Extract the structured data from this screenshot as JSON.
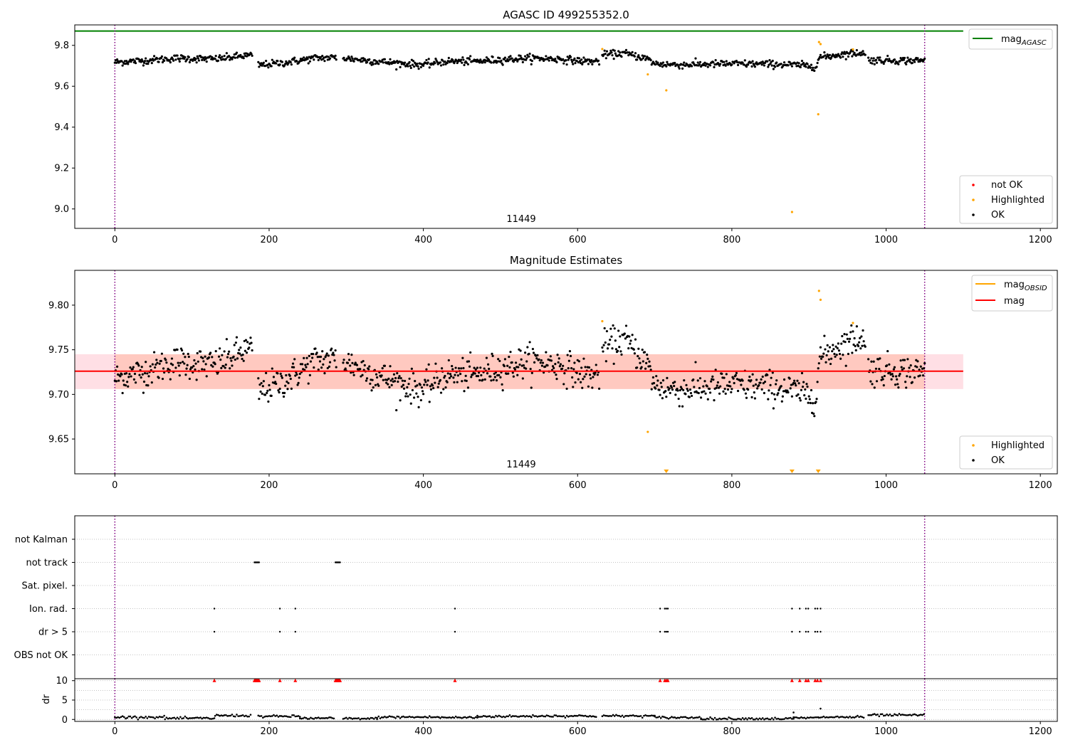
{
  "chart_data": [
    {
      "type": "scatter",
      "title": "AGASC ID 499255352.0",
      "xlim": [
        -52,
        1222
      ],
      "ylim": [
        8.905,
        9.9
      ],
      "x_ticks": [
        0,
        200,
        400,
        600,
        800,
        1000,
        1200
      ],
      "y_ticks": [
        9.0,
        9.2,
        9.4,
        9.6,
        9.8
      ],
      "y_tick_labels": [
        "9.0",
        "9.2",
        "9.4",
        "9.6",
        "9.8"
      ],
      "grid": false,
      "vlines": [
        0,
        1050
      ],
      "annotation": {
        "text": "11449",
        "x": 525
      },
      "mag_agasc": 9.87,
      "legend_lines": [
        {
          "label": "mag",
          "sub": "AGASC",
          "color": "#008000"
        }
      ],
      "legend_points": [
        {
          "label": "not OK",
          "color": "#ff0000"
        },
        {
          "label": "Highlighted",
          "color": "#ffa500"
        },
        {
          "label": "OK",
          "color": "#000000"
        }
      ],
      "highlighted_points": [
        {
          "x": 632,
          "y": 9.782
        },
        {
          "x": 691,
          "y": 9.658
        },
        {
          "x": 715,
          "y": 9.58
        },
        {
          "x": 878,
          "y": 8.985
        },
        {
          "x": 912,
          "y": 9.463
        },
        {
          "x": 913,
          "y": 9.816
        },
        {
          "x": 915,
          "y": 9.806
        },
        {
          "x": 957,
          "y": 9.78
        }
      ],
      "ok_series": {
        "x_start": 0,
        "x_end": 1050,
        "step": 1,
        "gaps": [
          [
            178,
            186
          ],
          [
            287,
            296
          ],
          [
            628,
            632
          ],
          [
            973,
            977
          ]
        ],
        "trend_knots": [
          [
            0,
            9.718
          ],
          [
            40,
            9.726
          ],
          [
            80,
            9.737
          ],
          [
            130,
            9.733
          ],
          [
            170,
            9.75
          ],
          [
            178,
            9.75
          ],
          [
            186,
            9.703
          ],
          [
            220,
            9.715
          ],
          [
            260,
            9.738
          ],
          [
            287,
            9.74
          ],
          [
            296,
            9.738
          ],
          [
            330,
            9.725
          ],
          [
            370,
            9.712
          ],
          [
            400,
            9.705
          ],
          [
            430,
            9.722
          ],
          [
            470,
            9.722
          ],
          [
            500,
            9.73
          ],
          [
            540,
            9.738
          ],
          [
            580,
            9.732
          ],
          [
            610,
            9.722
          ],
          [
            628,
            9.722
          ],
          [
            632,
            9.752
          ],
          [
            660,
            9.762
          ],
          [
            690,
            9.735
          ],
          [
            700,
            9.71
          ],
          [
            730,
            9.705
          ],
          [
            800,
            9.71
          ],
          [
            860,
            9.708
          ],
          [
            910,
            9.698
          ],
          [
            913,
            9.74
          ],
          [
            940,
            9.755
          ],
          [
            970,
            9.765
          ],
          [
            977,
            9.728
          ],
          [
            1050,
            9.725
          ]
        ],
        "noise": 0.009
      }
    },
    {
      "type": "scatter",
      "title": "Magnitude Estimates",
      "xlim": [
        -52,
        1222
      ],
      "ylim": [
        9.611,
        9.839
      ],
      "x_ticks": [
        0,
        200,
        400,
        600,
        800,
        1000,
        1200
      ],
      "y_ticks": [
        9.65,
        9.7,
        9.75,
        9.8
      ],
      "y_tick_labels": [
        "9.65",
        "9.70",
        "9.75",
        "9.80"
      ],
      "grid": false,
      "vlines": [
        0,
        1050
      ],
      "annotation": {
        "text": "11449",
        "x": 525
      },
      "mag": 9.726,
      "mag_band": [
        9.706,
        9.745
      ],
      "mag_band_xrange": [
        -52,
        1100
      ],
      "mag_obsid_band": [
        9.706,
        9.745
      ],
      "mag_obsid_xrange": [
        0,
        1050
      ],
      "legend_lines": [
        {
          "label": "mag",
          "sub": "OBSID",
          "color": "#ffa500"
        },
        {
          "label": "mag",
          "sub": "",
          "color": "#ff0000"
        }
      ],
      "legend_points": [
        {
          "label": "Highlighted",
          "color": "#ffa500"
        },
        {
          "label": "OK",
          "color": "#000000"
        }
      ],
      "highlighted_points": [
        {
          "x": 632,
          "y": 9.782
        },
        {
          "x": 691,
          "y": 9.658
        },
        {
          "x": 913,
          "y": 9.816
        },
        {
          "x": 915,
          "y": 9.806
        },
        {
          "x": 957,
          "y": 9.78
        }
      ],
      "off_scale_markers_x": [
        715,
        878,
        912
      ]
    },
    {
      "type": "scatter",
      "title": "",
      "xlim": [
        -52,
        1222
      ],
      "x_ticks": [
        0,
        200,
        400,
        600,
        800,
        1000,
        1200
      ],
      "vlines": [
        0,
        1050
      ],
      "categories": [
        "not Kalman",
        "not track",
        "Sat. pixel.",
        "Ion. rad.",
        "dr > 5",
        "OBS not OK"
      ],
      "flag_points": {
        "not Kalman": [],
        "not track": [
          181,
          182,
          183,
          184,
          185,
          186,
          187,
          286,
          287,
          288,
          289,
          290,
          291,
          292
        ],
        "Sat. pixel.": [],
        "Ion. rad.": [
          129,
          214,
          234,
          441,
          707,
          713,
          715,
          717,
          878,
          888,
          896,
          899,
          908,
          911,
          915
        ],
        "dr > 5": [
          129,
          214,
          234,
          441,
          707,
          713,
          715,
          717,
          878,
          888,
          896,
          899,
          908,
          911,
          915
        ],
        "OBS not OK": []
      }
    },
    {
      "type": "line",
      "title": "",
      "ylabel": "dr",
      "xlim": [
        -52,
        1222
      ],
      "ylim": [
        -0.5,
        10.5
      ],
      "x_ticks": [
        0,
        200,
        400,
        600,
        800,
        1000,
        1200
      ],
      "x_tick_labels": [
        "0",
        "200",
        "400",
        "600",
        "800",
        "1000",
        "1200"
      ],
      "y_ticks": [
        0,
        5,
        10
      ],
      "y_tick_labels": [
        "0",
        "5",
        "10"
      ],
      "vlines": [
        0,
        1050
      ],
      "clipped_markers_x": [
        129,
        181,
        182,
        183,
        184,
        185,
        186,
        187,
        214,
        234,
        286,
        287,
        288,
        289,
        290,
        291,
        292,
        441,
        707,
        713,
        715,
        717,
        878,
        888,
        896,
        899,
        908,
        911,
        915
      ],
      "spikes": [
        {
          "x": 880,
          "y": 1.8
        },
        {
          "x": 915,
          "y": 2.8
        }
      ],
      "dr_segments": [
        [
          0,
          65,
          0.6
        ],
        [
          65,
          130,
          0.3
        ],
        [
          130,
          176,
          1.0
        ],
        [
          186,
          240,
          0.8
        ],
        [
          240,
          285,
          0.3
        ],
        [
          296,
          340,
          0.2
        ],
        [
          340,
          420,
          0.6
        ],
        [
          420,
          470,
          0.5
        ],
        [
          470,
          540,
          0.8
        ],
        [
          540,
          625,
          0.9
        ],
        [
          632,
          700,
          0.9
        ],
        [
          700,
          760,
          0.5
        ],
        [
          760,
          880,
          0.2
        ],
        [
          880,
          913,
          0.4
        ],
        [
          913,
          972,
          0.6
        ],
        [
          977,
          1050,
          1.1
        ]
      ]
    }
  ]
}
